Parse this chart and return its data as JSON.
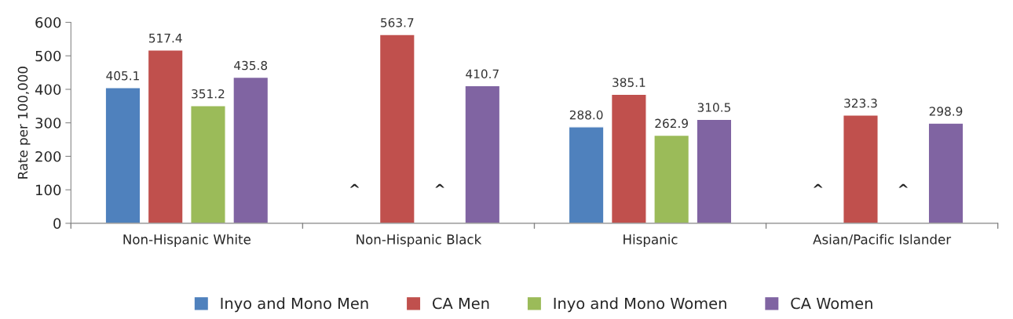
{
  "chart_data": {
    "type": "bar",
    "ylabel": "Rate per 100,000",
    "categories": [
      "Non-Hispanic White",
      "Non-Hispanic Black",
      "Hispanic",
      "Asian/Pacific Islander"
    ],
    "series": [
      {
        "name": "Inyo and Mono Men",
        "color": "#4f81bd",
        "values": [
          405.1,
          null,
          288.0,
          null
        ],
        "value_labels": [
          "405.1",
          "^",
          "288.0",
          "^"
        ]
      },
      {
        "name": "CA Men",
        "color": "#c0504d",
        "values": [
          517.4,
          563.7,
          385.1,
          323.3
        ],
        "value_labels": [
          "517.4",
          "563.7",
          "385.1",
          "323.3"
        ]
      },
      {
        "name": "Inyo and Mono Women",
        "color": "#9bbb59",
        "values": [
          351.2,
          null,
          262.9,
          null
        ],
        "value_labels": [
          "351.2",
          "^",
          "262.9",
          "^"
        ]
      },
      {
        "name": "CA Women",
        "color": "#8064a2",
        "values": [
          435.8,
          410.7,
          310.5,
          298.9
        ],
        "value_labels": [
          "435.8",
          "410.7",
          "310.5",
          "298.9"
        ]
      }
    ],
    "ylim": [
      0,
      600
    ],
    "yticks": [
      0,
      100,
      200,
      300,
      400,
      500,
      600
    ],
    "grid": false,
    "legend": "bottom"
  }
}
